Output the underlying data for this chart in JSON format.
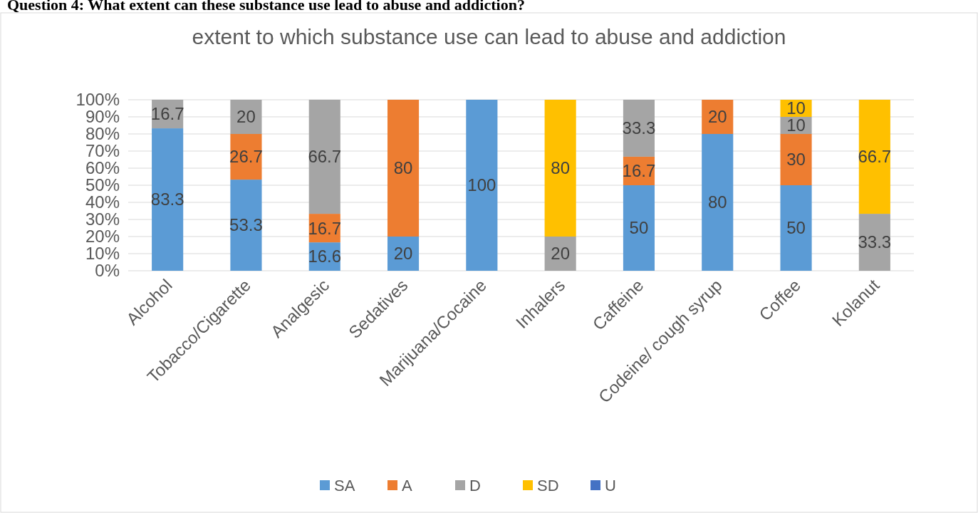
{
  "chart_data": {
    "type": "bar",
    "title": "extent to which substance use can lead to abuse and addiction",
    "annotations": [
      "Question 4: What extent can these substance use lead to abuse and addiction?"
    ],
    "categories": [
      "Alcohol",
      "Tobacco/Cigarette",
      "Analgesic",
      "Sedatives",
      "Marijuana/Cocaine",
      "Inhalers",
      "Caffeine",
      "Codeine/ cough syrup",
      "Coffee",
      "Kolanut"
    ],
    "stacked": true,
    "series": [
      {
        "name": "SA",
        "color": "#5b9bd5",
        "values": [
          83.3,
          53.3,
          16.6,
          20,
          100,
          null,
          50,
          80,
          50,
          null
        ]
      },
      {
        "name": "A",
        "color": "#ed7d31",
        "values": [
          null,
          26.7,
          16.7,
          80,
          null,
          null,
          16.7,
          20,
          30,
          null
        ]
      },
      {
        "name": "D",
        "color": "#a5a5a5",
        "values": [
          16.7,
          20,
          66.7,
          null,
          null,
          20,
          33.3,
          null,
          10,
          33.3
        ]
      },
      {
        "name": "SD",
        "color": "#ffc000",
        "values": [
          null,
          null,
          null,
          null,
          null,
          80,
          null,
          null,
          10,
          66.7
        ]
      },
      {
        "name": "U",
        "color": "#4472c4",
        "values": [
          null,
          null,
          null,
          null,
          null,
          null,
          null,
          null,
          null,
          null
        ]
      }
    ],
    "ylim": [
      0,
      100
    ],
    "yticks": [
      {
        "value": 0,
        "label": "0%"
      },
      {
        "value": 10,
        "label": "10%"
      },
      {
        "value": 20,
        "label": "20%"
      },
      {
        "value": 30,
        "label": "30%"
      },
      {
        "value": 40,
        "label": "40%"
      },
      {
        "value": 50,
        "label": "50%"
      },
      {
        "value": 60,
        "label": "60%"
      },
      {
        "value": 70,
        "label": "70%"
      },
      {
        "value": 80,
        "label": "80%"
      },
      {
        "value": 90,
        "label": "90%"
      },
      {
        "value": 100,
        "label": "100%"
      }
    ],
    "grid": "y",
    "legend": "bottom",
    "data_labels": true
  }
}
